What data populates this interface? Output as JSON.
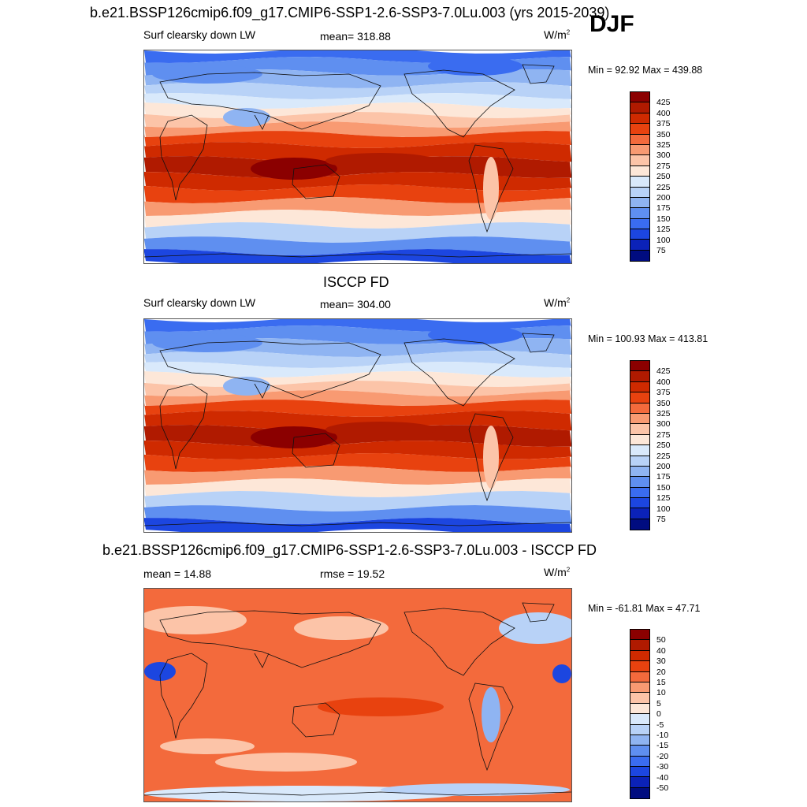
{
  "season": "DJF",
  "panels": [
    {
      "title": "b.e21.BSSP126cmip6.f09_g17.CMIP6-SSP1-2.6-SSP3-7.0Lu.003 (yrs 2015-2039)",
      "left": "Surf clearsky down LW",
      "center": "mean= 318.88",
      "units": "W/m",
      "units_sup": "2",
      "minmax": "Min =  92.92 Max = 439.88",
      "levels": [
        "425",
        "400",
        "375",
        "350",
        "325",
        "300",
        "275",
        "250",
        "225",
        "200",
        "175",
        "150",
        "125",
        "100",
        "75"
      ],
      "colors": [
        "#8b0000",
        "#b01a00",
        "#cf2a00",
        "#e8420f",
        "#f36a3c",
        "#f89a72",
        "#fcc4a8",
        "#fde7d8",
        "#d9e9fb",
        "#b8d2f7",
        "#8fb4f2",
        "#5f8ff0",
        "#3a6cf0",
        "#1c46e0",
        "#0b22b8",
        "#000c80"
      ]
    },
    {
      "title": "ISCCP FD",
      "left": "Surf clearsky down LW",
      "center": "mean= 304.00",
      "units": "W/m",
      "units_sup": "2",
      "minmax": "Min = 100.93 Max = 413.81",
      "levels": [
        "425",
        "400",
        "375",
        "350",
        "325",
        "300",
        "275",
        "250",
        "225",
        "200",
        "175",
        "150",
        "125",
        "100",
        "75"
      ],
      "colors": [
        "#8b0000",
        "#b01a00",
        "#cf2a00",
        "#e8420f",
        "#f36a3c",
        "#f89a72",
        "#fcc4a8",
        "#fde7d8",
        "#d9e9fb",
        "#b8d2f7",
        "#8fb4f2",
        "#5f8ff0",
        "#3a6cf0",
        "#1c46e0",
        "#0b22b8",
        "#000c80"
      ]
    },
    {
      "title": "b.e21.BSSP126cmip6.f09_g17.CMIP6-SSP1-2.6-SSP3-7.0Lu.003 - ISCCP FD",
      "left": "mean =  14.88",
      "center": "rmse =  19.52",
      "units": "W/m",
      "units_sup": "2",
      "minmax": "Min = -61.81 Max =  47.71",
      "levels": [
        "50",
        "40",
        "30",
        "20",
        "15",
        "10",
        "5",
        "0",
        "-5",
        "-10",
        "-15",
        "-20",
        "-30",
        "-40",
        "-50"
      ],
      "colors": [
        "#8b0000",
        "#b01a00",
        "#cf2a00",
        "#e8420f",
        "#f36a3c",
        "#f89a72",
        "#fcc4a8",
        "#fde7d8",
        "#d9e9fb",
        "#b8d2f7",
        "#8fb4f2",
        "#5f8ff0",
        "#3a6cf0",
        "#1c46e0",
        "#0b22b8",
        "#000c80"
      ]
    }
  ]
}
